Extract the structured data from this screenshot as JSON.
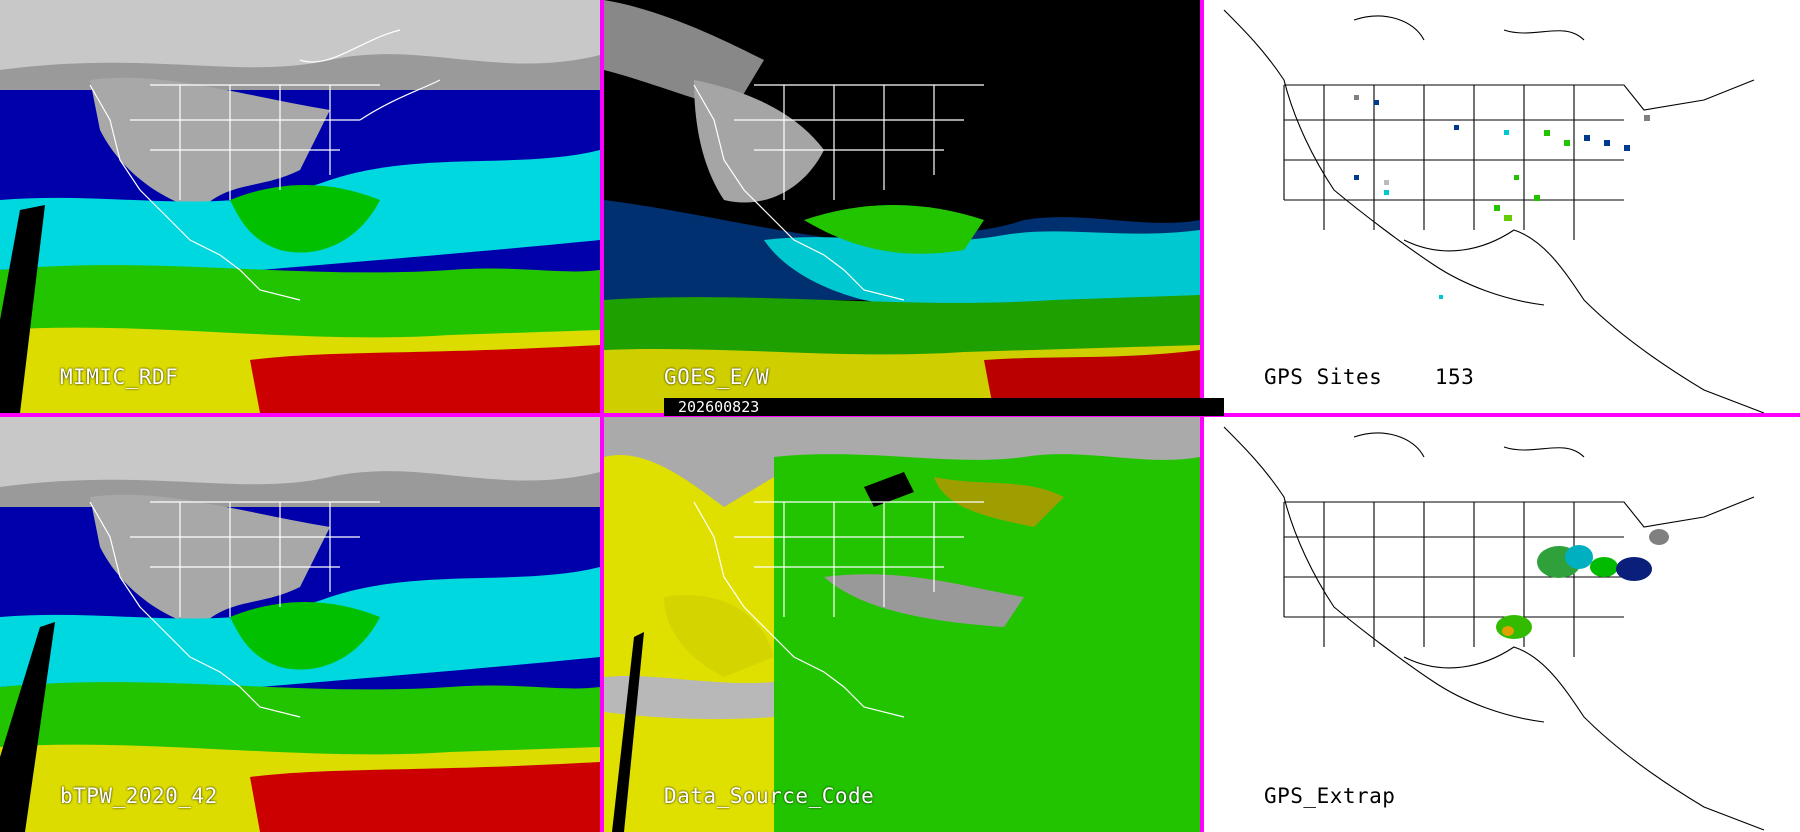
{
  "colors": {
    "divider": "#ff00ff",
    "moist_high": "#cc0000",
    "moist_mid_high": "#e6e600",
    "moist_mid": "#00cc00",
    "moist_low_mid": "#00e6e6",
    "moist_low": "#0000aa",
    "dry": "#b0b0b0",
    "source_yellow": "#e0e000",
    "source_green": "#22c400",
    "source_gray": "#aaaaaa"
  },
  "date_banner": "202600823",
  "panels": [
    {
      "id": "mimic-rdf",
      "label": "MIMIC_RDF",
      "style": "tpw"
    },
    {
      "id": "goes-ew",
      "label": "GOES_E/W",
      "style": "goes"
    },
    {
      "id": "gps-sites",
      "label": "GPS Sites    153",
      "style": "gps_sites"
    },
    {
      "id": "btpw",
      "label": "bTPW_2020_42",
      "style": "tpw"
    },
    {
      "id": "data-source",
      "label": "Data_Source_Code",
      "style": "source"
    },
    {
      "id": "gps-extrap",
      "label": "GPS_Extrap",
      "style": "gps_extrap"
    }
  ]
}
